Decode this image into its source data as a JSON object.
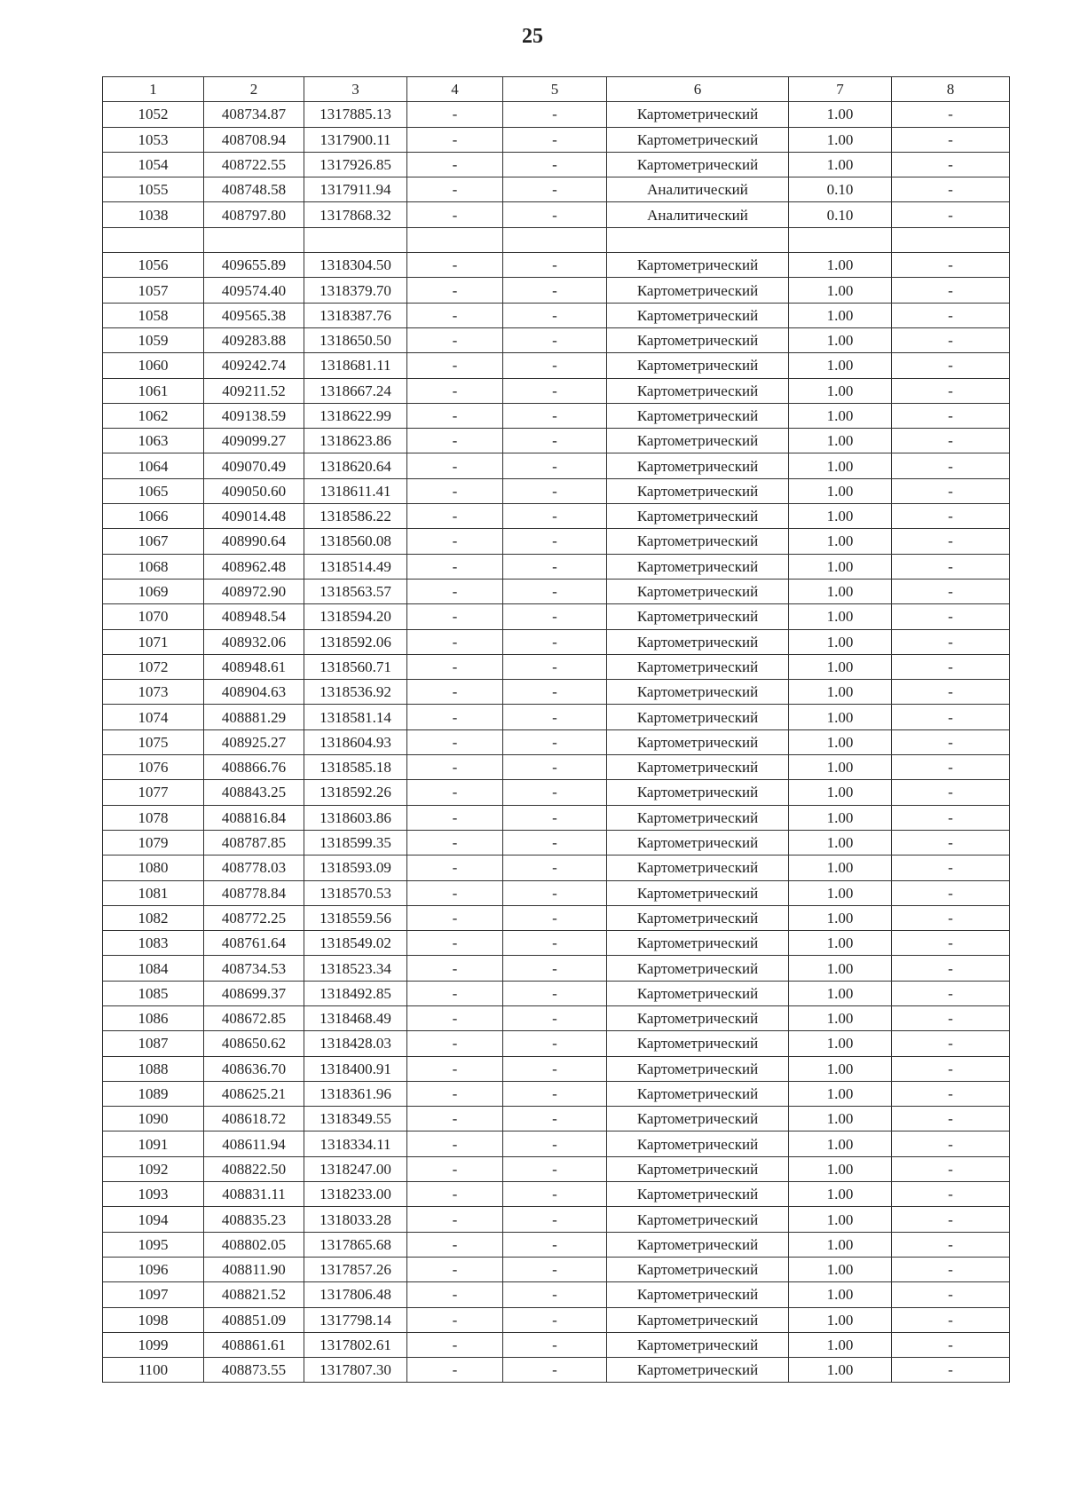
{
  "page_number": "25",
  "table": {
    "headers": [
      "1",
      "2",
      "3",
      "4",
      "5",
      "6",
      "7",
      "8"
    ],
    "rows": [
      [
        "1052",
        "408734.87",
        "1317885.13",
        "-",
        "-",
        "Картометрический",
        "1.00",
        "-"
      ],
      [
        "1053",
        "408708.94",
        "1317900.11",
        "-",
        "-",
        "Картометрический",
        "1.00",
        "-"
      ],
      [
        "1054",
        "408722.55",
        "1317926.85",
        "-",
        "-",
        "Картометрический",
        "1.00",
        "-"
      ],
      [
        "1055",
        "408748.58",
        "1317911.94",
        "-",
        "-",
        "Аналитический",
        "0.10",
        "-"
      ],
      [
        "1038",
        "408797.80",
        "1317868.32",
        "-",
        "-",
        "Аналитический",
        "0.10",
        "-"
      ],
      [
        "",
        "",
        "",
        "",
        "",
        "",
        "",
        ""
      ],
      [
        "1056",
        "409655.89",
        "1318304.50",
        "-",
        "-",
        "Картометрический",
        "1.00",
        "-"
      ],
      [
        "1057",
        "409574.40",
        "1318379.70",
        "-",
        "-",
        "Картометрический",
        "1.00",
        "-"
      ],
      [
        "1058",
        "409565.38",
        "1318387.76",
        "-",
        "-",
        "Картометрический",
        "1.00",
        "-"
      ],
      [
        "1059",
        "409283.88",
        "1318650.50",
        "-",
        "-",
        "Картометрический",
        "1.00",
        "-"
      ],
      [
        "1060",
        "409242.74",
        "1318681.11",
        "-",
        "-",
        "Картометрический",
        "1.00",
        "-"
      ],
      [
        "1061",
        "409211.52",
        "1318667.24",
        "-",
        "-",
        "Картометрический",
        "1.00",
        "-"
      ],
      [
        "1062",
        "409138.59",
        "1318622.99",
        "-",
        "-",
        "Картометрический",
        "1.00",
        "-"
      ],
      [
        "1063",
        "409099.27",
        "1318623.86",
        "-",
        "-",
        "Картометрический",
        "1.00",
        "-"
      ],
      [
        "1064",
        "409070.49",
        "1318620.64",
        "-",
        "-",
        "Картометрический",
        "1.00",
        "-"
      ],
      [
        "1065",
        "409050.60",
        "1318611.41",
        "-",
        "-",
        "Картометрический",
        "1.00",
        "-"
      ],
      [
        "1066",
        "409014.48",
        "1318586.22",
        "-",
        "-",
        "Картометрический",
        "1.00",
        "-"
      ],
      [
        "1067",
        "408990.64",
        "1318560.08",
        "-",
        "-",
        "Картометрический",
        "1.00",
        "-"
      ],
      [
        "1068",
        "408962.48",
        "1318514.49",
        "-",
        "-",
        "Картометрический",
        "1.00",
        "-"
      ],
      [
        "1069",
        "408972.90",
        "1318563.57",
        "-",
        "-",
        "Картометрический",
        "1.00",
        "-"
      ],
      [
        "1070",
        "408948.54",
        "1318594.20",
        "-",
        "-",
        "Картометрический",
        "1.00",
        "-"
      ],
      [
        "1071",
        "408932.06",
        "1318592.06",
        "-",
        "-",
        "Картометрический",
        "1.00",
        "-"
      ],
      [
        "1072",
        "408948.61",
        "1318560.71",
        "-",
        "-",
        "Картометрический",
        "1.00",
        "-"
      ],
      [
        "1073",
        "408904.63",
        "1318536.92",
        "-",
        "-",
        "Картометрический",
        "1.00",
        "-"
      ],
      [
        "1074",
        "408881.29",
        "1318581.14",
        "-",
        "-",
        "Картометрический",
        "1.00",
        "-"
      ],
      [
        "1075",
        "408925.27",
        "1318604.93",
        "-",
        "-",
        "Картометрический",
        "1.00",
        "-"
      ],
      [
        "1076",
        "408866.76",
        "1318585.18",
        "-",
        "-",
        "Картометрический",
        "1.00",
        "-"
      ],
      [
        "1077",
        "408843.25",
        "1318592.26",
        "-",
        "-",
        "Картометрический",
        "1.00",
        "-"
      ],
      [
        "1078",
        "408816.84",
        "1318603.86",
        "-",
        "-",
        "Картометрический",
        "1.00",
        "-"
      ],
      [
        "1079",
        "408787.85",
        "1318599.35",
        "-",
        "-",
        "Картометрический",
        "1.00",
        "-"
      ],
      [
        "1080",
        "408778.03",
        "1318593.09",
        "-",
        "-",
        "Картометрический",
        "1.00",
        "-"
      ],
      [
        "1081",
        "408778.84",
        "1318570.53",
        "-",
        "-",
        "Картометрический",
        "1.00",
        "-"
      ],
      [
        "1082",
        "408772.25",
        "1318559.56",
        "-",
        "-",
        "Картометрический",
        "1.00",
        "-"
      ],
      [
        "1083",
        "408761.64",
        "1318549.02",
        "-",
        "-",
        "Картометрический",
        "1.00",
        "-"
      ],
      [
        "1084",
        "408734.53",
        "1318523.34",
        "-",
        "-",
        "Картометрический",
        "1.00",
        "-"
      ],
      [
        "1085",
        "408699.37",
        "1318492.85",
        "-",
        "-",
        "Картометрический",
        "1.00",
        "-"
      ],
      [
        "1086",
        "408672.85",
        "1318468.49",
        "-",
        "-",
        "Картометрический",
        "1.00",
        "-"
      ],
      [
        "1087",
        "408650.62",
        "1318428.03",
        "-",
        "-",
        "Картометрический",
        "1.00",
        "-"
      ],
      [
        "1088",
        "408636.70",
        "1318400.91",
        "-",
        "-",
        "Картометрический",
        "1.00",
        "-"
      ],
      [
        "1089",
        "408625.21",
        "1318361.96",
        "-",
        "-",
        "Картометрический",
        "1.00",
        "-"
      ],
      [
        "1090",
        "408618.72",
        "1318349.55",
        "-",
        "-",
        "Картометрический",
        "1.00",
        "-"
      ],
      [
        "1091",
        "408611.94",
        "1318334.11",
        "-",
        "-",
        "Картометрический",
        "1.00",
        "-"
      ],
      [
        "1092",
        "408822.50",
        "1318247.00",
        "-",
        "-",
        "Картометрический",
        "1.00",
        "-"
      ],
      [
        "1093",
        "408831.11",
        "1318233.00",
        "-",
        "-",
        "Картометрический",
        "1.00",
        "-"
      ],
      [
        "1094",
        "408835.23",
        "1318033.28",
        "-",
        "-",
        "Картометрический",
        "1.00",
        "-"
      ],
      [
        "1095",
        "408802.05",
        "1317865.68",
        "-",
        "-",
        "Картометрический",
        "1.00",
        "-"
      ],
      [
        "1096",
        "408811.90",
        "1317857.26",
        "-",
        "-",
        "Картометрический",
        "1.00",
        "-"
      ],
      [
        "1097",
        "408821.52",
        "1317806.48",
        "-",
        "-",
        "Картометрический",
        "1.00",
        "-"
      ],
      [
        "1098",
        "408851.09",
        "1317798.14",
        "-",
        "-",
        "Картометрический",
        "1.00",
        "-"
      ],
      [
        "1099",
        "408861.61",
        "1317802.61",
        "-",
        "-",
        "Картометрический",
        "1.00",
        "-"
      ],
      [
        "1100",
        "408873.55",
        "1317807.30",
        "-",
        "-",
        "Картометрический",
        "1.00",
        "-"
      ]
    ]
  }
}
